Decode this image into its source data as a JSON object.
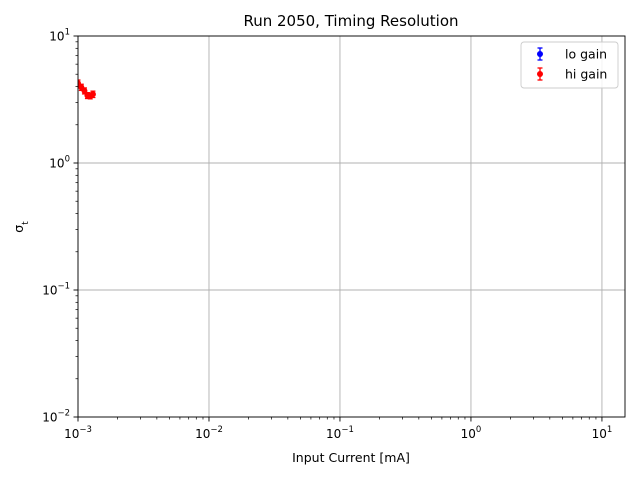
{
  "chart_data": {
    "type": "scatter",
    "title": "Run 2050, Timing Resolution",
    "xlabel": "Input Current [mA]",
    "ylabel": "σ",
    "ylabel_sub": "t",
    "x_scale": "log",
    "y_scale": "log",
    "xlim": [
      0.001,
      15
    ],
    "ylim": [
      0.01,
      10
    ],
    "x_ticks": [
      {
        "value": 0.001,
        "base": "10",
        "exp": "−3"
      },
      {
        "value": 0.01,
        "base": "10",
        "exp": "−2"
      },
      {
        "value": 0.1,
        "base": "10",
        "exp": "−1"
      },
      {
        "value": 1,
        "base": "10",
        "exp": "0"
      },
      {
        "value": 10,
        "base": "10",
        "exp": "1"
      }
    ],
    "y_ticks": [
      {
        "value": 0.01,
        "base": "10",
        "exp": "−2"
      },
      {
        "value": 0.1,
        "base": "10",
        "exp": "−1"
      },
      {
        "value": 1,
        "base": "10",
        "exp": "0"
      },
      {
        "value": 10,
        "base": "10",
        "exp": "1"
      }
    ],
    "grid": true,
    "legend_position": "top-right",
    "series": [
      {
        "name": "lo gain",
        "color": "#0000ff",
        "points": []
      },
      {
        "name": "hi gain",
        "color": "#ff0000",
        "points": [
          {
            "x": 0.001,
            "y": 4.25,
            "err": 0.25
          },
          {
            "x": 0.00106,
            "y": 3.95,
            "err": 0.22
          },
          {
            "x": 0.00112,
            "y": 3.7,
            "err": 0.2
          },
          {
            "x": 0.00118,
            "y": 3.4,
            "err": 0.18
          },
          {
            "x": 0.00124,
            "y": 3.38,
            "err": 0.18
          },
          {
            "x": 0.0013,
            "y": 3.48,
            "err": 0.2
          }
        ]
      }
    ]
  }
}
